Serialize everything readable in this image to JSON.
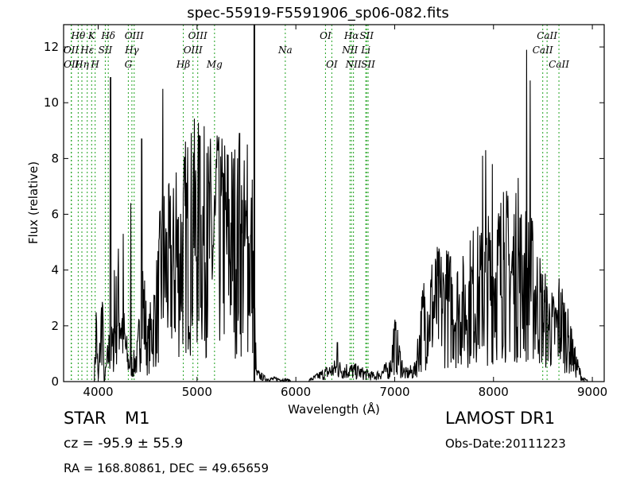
{
  "title": "spec-55919-F5591906_sp06-082.fits",
  "info": {
    "object_class": "STAR",
    "subclass": "M1",
    "survey": "LAMOST DR1",
    "cz": "cz = -95.9 ± 55.9",
    "obs_date": "Obs-Date:20111223",
    "coords": "RA = 168.80861, DEC = 49.65659"
  },
  "chart_data": {
    "type": "line",
    "title": "spec-55919-F5591906_sp06-082.fits",
    "xlabel": "Wavelength (Å)",
    "ylabel": "Flux (relative)",
    "xlim": [
      3650,
      9120
    ],
    "ylim": [
      0,
      12.8
    ],
    "xticks": [
      4000,
      5000,
      6000,
      7000,
      8000,
      9000
    ],
    "yticks": [
      0,
      2,
      4,
      6,
      8,
      10,
      12
    ],
    "grid": false,
    "colors": {
      "spectrum": "#000000",
      "lines": "#33aa33"
    },
    "vertical_marker": {
      "x": 5580
    },
    "lines": [
      {
        "label": "Hθ",
        "x": 3798,
        "row": 0
      },
      {
        "label": "OII",
        "x": 3727,
        "row": 1
      },
      {
        "label": "OII",
        "x": 3729,
        "row": 2
      },
      {
        "label": "Hη",
        "x": 3835,
        "row": 2
      },
      {
        "label": "Hε",
        "x": 3889,
        "row": 1
      },
      {
        "label": "K",
        "x": 3934,
        "row": 0
      },
      {
        "label": "H",
        "x": 3969,
        "row": 2
      },
      {
        "label": "SII",
        "x": 4072,
        "row": 1
      },
      {
        "label": "Hδ",
        "x": 4102,
        "row": 0
      },
      {
        "label": "G",
        "x": 4305,
        "row": 2
      },
      {
        "label": "Hγ",
        "x": 4341,
        "row": 1
      },
      {
        "label": "OIII",
        "x": 4364,
        "row": 0
      },
      {
        "label": "Hβ",
        "x": 4861,
        "row": 2
      },
      {
        "label": "OIII",
        "x": 4959,
        "row": 1
      },
      {
        "label": "OIII",
        "x": 5007,
        "row": 0
      },
      {
        "label": "Mg",
        "x": 5177,
        "row": 2
      },
      {
        "label": "Na",
        "x": 5893,
        "row": 1
      },
      {
        "label": "OI",
        "x": 6300,
        "row": 0
      },
      {
        "label": "OI",
        "x": 6364,
        "row": 2
      },
      {
        "label": "NII",
        "x": 6548,
        "row": 1
      },
      {
        "label": "Hα",
        "x": 6563,
        "row": 0
      },
      {
        "label": "NII",
        "x": 6583,
        "row": 2
      },
      {
        "label": "Li",
        "x": 6708,
        "row": 1
      },
      {
        "label": "SII",
        "x": 6716,
        "row": 0
      },
      {
        "label": "SII",
        "x": 6731,
        "row": 2
      },
      {
        "label": "CaII",
        "x": 8498,
        "row": 1
      },
      {
        "label": "CaII",
        "x": 8542,
        "row": 0
      },
      {
        "label": "CaII",
        "x": 8662,
        "row": 2
      }
    ],
    "spectrum_profile": [
      [
        3700,
        0
      ],
      [
        3960,
        0
      ],
      [
        3980,
        2.1
      ],
      [
        4000,
        0
      ],
      [
        4040,
        2.7
      ],
      [
        4060,
        0
      ],
      [
        4110,
        1.2
      ],
      [
        4150,
        1.3
      ],
      [
        4200,
        3.2
      ],
      [
        4300,
        0.8
      ],
      [
        4350,
        0.6
      ],
      [
        4400,
        1.0
      ],
      [
        4450,
        3.2
      ],
      [
        4500,
        1.3
      ],
      [
        4600,
        3.0
      ],
      [
        4650,
        4.6
      ],
      [
        4700,
        4.3
      ],
      [
        4800,
        4.5
      ],
      [
        4900,
        5.6
      ],
      [
        5000,
        5.8
      ],
      [
        5100,
        5.5
      ],
      [
        5200,
        5.4
      ],
      [
        5300,
        5.6
      ],
      [
        5400,
        5.4
      ],
      [
        5500,
        4.9
      ],
      [
        5560,
        4.8
      ],
      [
        5600,
        0.3
      ],
      [
        5700,
        0.1
      ],
      [
        5800,
        0.1
      ],
      [
        6100,
        0.0
      ],
      [
        6400,
        0.5
      ],
      [
        6600,
        0.4
      ],
      [
        6800,
        0.2
      ],
      [
        6950,
        0.5
      ],
      [
        7000,
        1.5
      ],
      [
        7100,
        0.3
      ],
      [
        7200,
        0.4
      ],
      [
        7300,
        2.6
      ],
      [
        7400,
        3.0
      ],
      [
        7500,
        3.0
      ],
      [
        7600,
        2.9
      ],
      [
        7700,
        2.8
      ],
      [
        7800,
        3.5
      ],
      [
        7900,
        3.4
      ],
      [
        8000,
        4.1
      ],
      [
        8100,
        4.3
      ],
      [
        8200,
        4.2
      ],
      [
        8300,
        4.1
      ],
      [
        8400,
        3.6
      ],
      [
        8500,
        2.6
      ],
      [
        8600,
        2.0
      ],
      [
        8700,
        2.3
      ],
      [
        8800,
        1.0
      ],
      [
        8900,
        0.1
      ],
      [
        9000,
        0.0
      ],
      [
        9100,
        0.0
      ]
    ],
    "spectrum_peaks": [
      [
        3982,
        2.15
      ],
      [
        4045,
        2.7
      ],
      [
        4125,
        10.9
      ],
      [
        4165,
        4.0
      ],
      [
        4255,
        5.3
      ],
      [
        4330,
        6.4
      ],
      [
        4440,
        8.7
      ],
      [
        4655,
        10.5
      ],
      [
        4790,
        7.5
      ],
      [
        4965,
        8.2
      ],
      [
        5030,
        8.8
      ],
      [
        5100,
        8.2
      ],
      [
        5210,
        8.3
      ],
      [
        5260,
        7.5
      ],
      [
        5430,
        8.9
      ],
      [
        5510,
        8.5
      ],
      [
        6420,
        1.4
      ],
      [
        6990,
        1.9
      ],
      [
        7350,
        2.4
      ],
      [
        7525,
        4.7
      ],
      [
        7890,
        8.1
      ],
      [
        7920,
        8.3
      ],
      [
        7990,
        7.8
      ],
      [
        8100,
        6.8
      ],
      [
        8250,
        7.3
      ],
      [
        8334,
        11.9
      ],
      [
        8370,
        10.8
      ],
      [
        8665,
        3.7
      ],
      [
        8730,
        2.5
      ],
      [
        8790,
        1.9
      ]
    ]
  }
}
